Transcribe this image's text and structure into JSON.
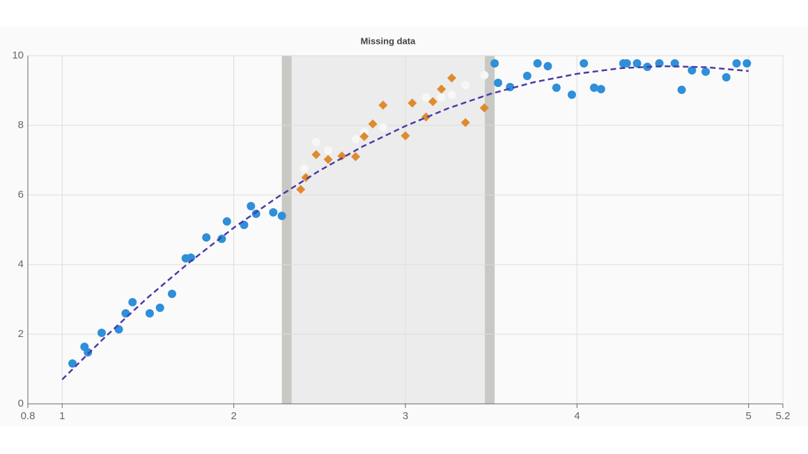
{
  "chart_data": {
    "type": "scatter",
    "title": "Missing data",
    "xlim": [
      0.8,
      5.2
    ],
    "xticks": [
      0.8,
      1,
      2,
      3,
      4,
      5,
      5.2
    ],
    "ylim": [
      0,
      10
    ],
    "yticks": [
      0,
      2,
      4,
      6,
      8,
      10
    ],
    "grid": true,
    "missing_range": [
      2.28,
      3.52
    ],
    "series": [
      {
        "mark": "circle",
        "color": "#2f8fd8",
        "x": [
          1.06,
          1.13,
          1.15,
          1.23,
          1.33,
          1.37,
          1.41,
          1.51,
          1.57,
          1.64,
          1.72,
          1.75,
          1.84,
          1.93,
          1.96,
          2.06,
          2.1,
          2.13,
          2.23,
          2.28,
          3.52,
          3.54,
          3.61,
          3.71,
          3.77,
          3.83,
          3.88,
          3.97,
          4.04,
          4.1,
          4.14,
          4.27,
          4.29,
          4.35,
          4.41,
          4.48,
          4.57,
          4.61,
          4.67,
          4.75,
          4.87,
          4.93,
          4.99
        ],
        "values": [
          1.16,
          1.64,
          1.48,
          2.04,
          2.14,
          2.6,
          2.92,
          2.6,
          2.76,
          3.16,
          4.18,
          4.2,
          4.78,
          4.74,
          5.24,
          5.14,
          5.68,
          5.46,
          5.5,
          5.4,
          9.78,
          9.22,
          9.1,
          9.42,
          9.78,
          9.7,
          9.08,
          8.88,
          9.78,
          9.08,
          9.04,
          9.78,
          9.78,
          9.78,
          9.68,
          9.78,
          9.78,
          9.02,
          9.58,
          9.54,
          9.38,
          9.78,
          9.78
        ]
      },
      {
        "mark": "circle",
        "color": "#f7f7f7",
        "x": [
          2.41,
          2.48,
          2.55,
          2.71,
          2.76,
          2.87,
          3.12,
          3.21,
          3.27,
          3.35,
          3.46
        ],
        "values": [
          6.76,
          7.52,
          7.28,
          7.6,
          7.8,
          7.94,
          8.8,
          8.8,
          8.88,
          9.16,
          9.44
        ]
      },
      {
        "mark": "diamond",
        "color": "#e08a2e",
        "x": [
          2.39,
          2.42,
          2.48,
          2.55,
          2.63,
          2.71,
          2.76,
          2.81,
          2.87,
          3.0,
          3.04,
          3.12,
          3.16,
          3.21,
          3.27,
          3.35,
          3.46
        ],
        "values": [
          6.16,
          6.5,
          7.16,
          7.02,
          7.12,
          7.1,
          7.68,
          8.04,
          8.58,
          7.7,
          8.64,
          8.24,
          8.68,
          9.04,
          9.36,
          8.08,
          8.5
        ]
      },
      {
        "mark": "dashed-line",
        "color": "#4a3aa8",
        "x": [
          1,
          1.25,
          1.5,
          1.75,
          2,
          2.25,
          2.5,
          2.75,
          3,
          3.25,
          3.5,
          3.75,
          4,
          4.25,
          4.5,
          4.75,
          5
        ],
        "values": [
          0.7,
          1.92,
          3.06,
          4.1,
          5.06,
          5.92,
          6.7,
          7.39,
          7.98,
          8.49,
          8.91,
          9.24,
          9.48,
          9.64,
          9.7,
          9.67,
          9.56
        ]
      }
    ]
  }
}
